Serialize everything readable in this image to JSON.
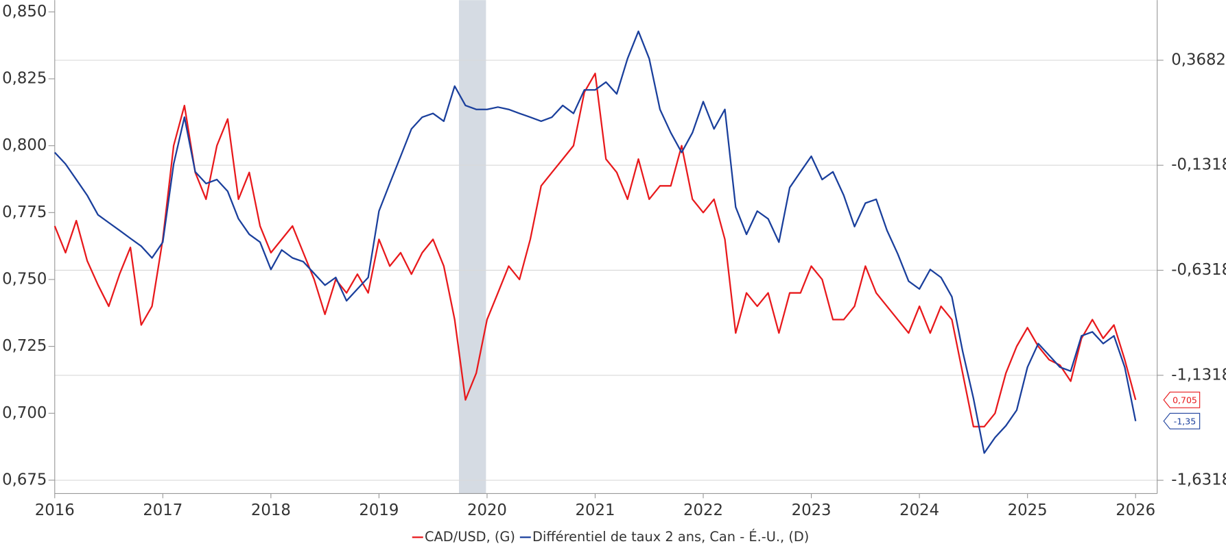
{
  "chart_data": {
    "type": "line",
    "x": [
      2016.0,
      2016.1,
      2016.2,
      2016.3,
      2016.4,
      2016.5,
      2016.6,
      2016.7,
      2016.8,
      2016.9,
      2017.0,
      2017.1,
      2017.2,
      2017.3,
      2017.4,
      2017.5,
      2017.6,
      2017.7,
      2017.8,
      2017.9,
      2018.0,
      2018.1,
      2018.2,
      2018.3,
      2018.4,
      2018.5,
      2018.6,
      2018.7,
      2018.8,
      2018.9,
      2019.0,
      2019.1,
      2019.2,
      2019.3,
      2019.4,
      2019.5,
      2019.6,
      2019.7,
      2019.8,
      2019.9,
      2020.0,
      2020.1,
      2020.2,
      2020.3,
      2020.4,
      2020.5,
      2020.6,
      2020.7,
      2020.8,
      2020.9,
      2021.0,
      2021.1,
      2021.2,
      2021.3,
      2021.4,
      2021.5,
      2021.6,
      2021.7,
      2021.8,
      2021.9,
      2022.0,
      2022.1,
      2022.2,
      2022.3,
      2022.4,
      2022.5,
      2022.6,
      2022.7,
      2022.8,
      2022.9,
      2023.0,
      2023.1,
      2023.2,
      2023.3,
      2023.4,
      2023.5,
      2023.6,
      2023.7,
      2023.8,
      2023.9,
      2024.0,
      2024.1,
      2024.2,
      2024.3,
      2024.4,
      2024.5,
      2024.6,
      2024.7,
      2024.8,
      2024.9,
      2025.0,
      2025.1,
      2025.2,
      2025.3,
      2025.4,
      2025.5,
      2025.6,
      2025.7,
      2025.8,
      2025.9,
      2026.0
    ],
    "series": [
      {
        "name": "CAD/USD, (G)",
        "color": "#e8191c",
        "axis": "y",
        "end_label": "0,705",
        "values": [
          0.77,
          0.76,
          0.772,
          0.757,
          0.748,
          0.74,
          0.752,
          0.762,
          0.733,
          0.74,
          0.765,
          0.8,
          0.815,
          0.79,
          0.78,
          0.8,
          0.81,
          0.78,
          0.79,
          0.77,
          0.76,
          0.765,
          0.77,
          0.76,
          0.75,
          0.737,
          0.75,
          0.745,
          0.752,
          0.745,
          0.765,
          0.755,
          0.76,
          0.752,
          0.76,
          0.765,
          0.755,
          0.735,
          0.705,
          0.715,
          0.735,
          0.745,
          0.755,
          0.75,
          0.765,
          0.785,
          0.79,
          0.795,
          0.8,
          0.82,
          0.827,
          0.795,
          0.79,
          0.78,
          0.795,
          0.78,
          0.785,
          0.785,
          0.8,
          0.78,
          0.775,
          0.78,
          0.765,
          0.73,
          0.745,
          0.74,
          0.745,
          0.73,
          0.745,
          0.745,
          0.755,
          0.75,
          0.735,
          0.735,
          0.74,
          0.755,
          0.745,
          0.74,
          0.735,
          0.73,
          0.74,
          0.73,
          0.74,
          0.735,
          0.715,
          0.695,
          0.695,
          0.7,
          0.715,
          0.725,
          0.732,
          0.725,
          0.72,
          0.718,
          0.712,
          0.728,
          0.735,
          0.728,
          0.733,
          0.72,
          0.705
        ]
      },
      {
        "name": "Différentiel de taux 2 ans, Can - É.-U., (D)",
        "color": "#1a3f9c",
        "axis": "y2",
        "end_label": "-1,35",
        "values": [
          -0.071,
          -0.126,
          -0.2,
          -0.275,
          -0.368,
          -0.405,
          -0.442,
          -0.48,
          -0.517,
          -0.573,
          -0.498,
          -0.126,
          0.097,
          -0.163,
          -0.219,
          -0.2,
          -0.256,
          -0.387,
          -0.461,
          -0.498,
          -0.628,
          -0.535,
          -0.573,
          -0.591,
          -0.647,
          -0.703,
          -0.666,
          -0.777,
          -0.721,
          -0.666,
          -0.35,
          -0.219,
          -0.089,
          0.041,
          0.097,
          0.115,
          0.078,
          0.245,
          0.153,
          0.134,
          0.134,
          0.145,
          0.134,
          0.115,
          0.097,
          0.078,
          0.097,
          0.153,
          0.115,
          0.227,
          0.227,
          0.264,
          0.208,
          0.376,
          0.506,
          0.376,
          0.134,
          0.023,
          -0.071,
          0.023,
          0.171,
          0.041,
          0.134,
          -0.331,
          -0.461,
          -0.35,
          -0.387,
          -0.498,
          -0.238,
          -0.163,
          -0.089,
          -0.2,
          -0.163,
          -0.275,
          -0.424,
          -0.312,
          -0.294,
          -0.442,
          -0.554,
          -0.684,
          -0.721,
          -0.628,
          -0.666,
          -0.758,
          -1.018,
          -1.242,
          -1.502,
          -1.428,
          -1.372,
          -1.298,
          -1.093,
          -0.981,
          -1.037,
          -1.093,
          -1.112,
          -0.944,
          -0.925,
          -0.981,
          -0.944,
          -1.093,
          -1.35
        ]
      }
    ],
    "xlim": [
      2016,
      2026.2
    ],
    "xticks": [
      2016,
      2017,
      2018,
      2019,
      2020,
      2021,
      2022,
      2023,
      2024,
      2025,
      2026
    ],
    "ylim": [
      0.67,
      0.8544
    ],
    "yticks": [
      {
        "value": 0.675,
        "label": "0,675"
      },
      {
        "value": 0.7,
        "label": "0,700"
      },
      {
        "value": 0.725,
        "label": "0,725"
      },
      {
        "value": 0.75,
        "label": "0,750"
      },
      {
        "value": 0.775,
        "label": "0,775"
      },
      {
        "value": 0.8,
        "label": "0,800"
      },
      {
        "value": 0.825,
        "label": "0,825"
      },
      {
        "value": 0.85,
        "label": "0,850"
      }
    ],
    "y2lim": [
      -1.695,
      0.6544
    ],
    "y2ticks": [
      {
        "value": -1.6318,
        "label": "-1,6318"
      },
      {
        "value": -1.1318,
        "label": "-1,1318"
      },
      {
        "value": -0.6318,
        "label": "-0,6318"
      },
      {
        "value": -0.1318,
        "label": "-0,1318"
      },
      {
        "value": 0.3682,
        "label": "0,3682"
      }
    ],
    "grid": true,
    "shaded_regions": [
      {
        "start": 2019.74,
        "end": 2019.99,
        "color": "#d5dbe3"
      }
    ]
  }
}
